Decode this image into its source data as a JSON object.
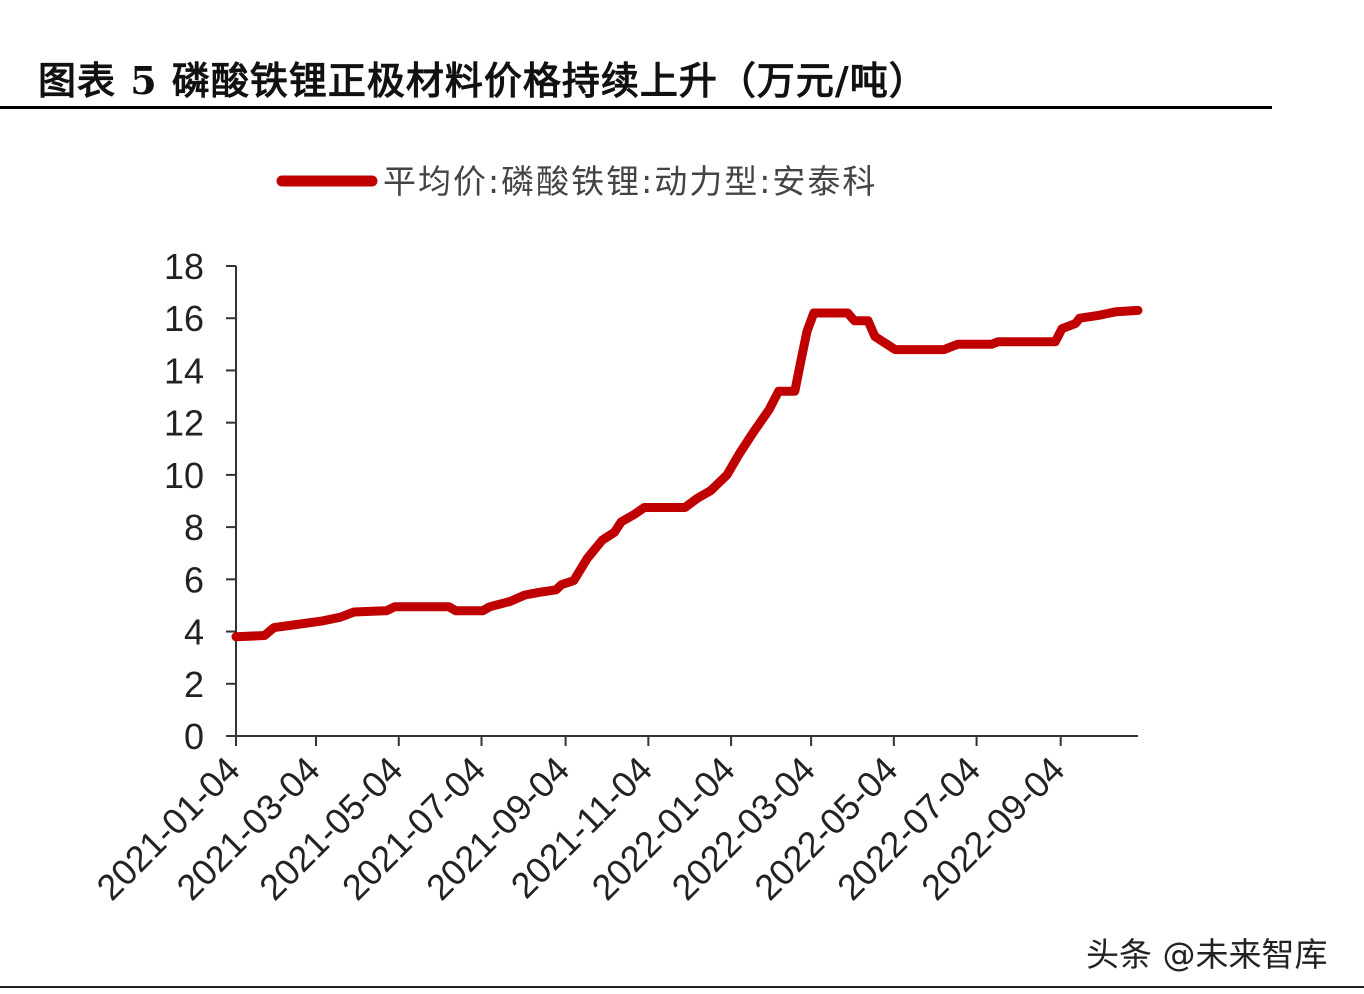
{
  "figure": {
    "title": "图表 5  磷酸铁锂正极材料价格持续上升（万元/吨）"
  },
  "watermark": "头条 @未来智库",
  "colors": {
    "series": "#c00000",
    "axis": "#333333",
    "text": "#222222"
  },
  "chart_data": {
    "type": "line",
    "title": "",
    "xlabel": "",
    "ylabel": "",
    "ylim": [
      0,
      18
    ],
    "yticks": [
      0,
      2,
      4,
      6,
      8,
      10,
      12,
      14,
      16,
      18
    ],
    "xlim": [
      "2021-01-04",
      "2022-10-31"
    ],
    "xticks": [
      "2021-01-04",
      "2021-03-04",
      "2021-05-04",
      "2021-07-04",
      "2021-09-04",
      "2021-11-04",
      "2022-01-04",
      "2022-03-04",
      "2022-05-04",
      "2022-07-04",
      "2022-09-04"
    ],
    "grid": false,
    "legend": "top",
    "series": [
      {
        "name": "平均价:磷酸铁锂:动力型:安泰科",
        "points": [
          [
            "2021-01-04",
            3.8
          ],
          [
            "2021-01-25",
            3.85
          ],
          [
            "2021-02-01",
            4.15
          ],
          [
            "2021-02-15",
            4.25
          ],
          [
            "2021-03-08",
            4.4
          ],
          [
            "2021-03-22",
            4.55
          ],
          [
            "2021-04-01",
            4.75
          ],
          [
            "2021-04-25",
            4.8
          ],
          [
            "2021-05-01",
            4.95
          ],
          [
            "2021-06-10",
            4.95
          ],
          [
            "2021-06-15",
            4.8
          ],
          [
            "2021-07-05",
            4.8
          ],
          [
            "2021-07-10",
            4.95
          ],
          [
            "2021-07-25",
            5.15
          ],
          [
            "2021-08-05",
            5.4
          ],
          [
            "2021-08-15",
            5.5
          ],
          [
            "2021-08-28",
            5.6
          ],
          [
            "2021-09-01",
            5.8
          ],
          [
            "2021-09-10",
            5.95
          ],
          [
            "2021-09-20",
            6.8
          ],
          [
            "2021-10-01",
            7.5
          ],
          [
            "2021-10-10",
            7.8
          ],
          [
            "2021-10-15",
            8.2
          ],
          [
            "2021-10-25",
            8.5
          ],
          [
            "2021-11-01",
            8.75
          ],
          [
            "2021-12-01",
            8.75
          ],
          [
            "2021-12-10",
            9.1
          ],
          [
            "2021-12-20",
            9.4
          ],
          [
            "2022-01-01",
            10.0
          ],
          [
            "2022-01-10",
            10.8
          ],
          [
            "2022-01-20",
            11.6
          ],
          [
            "2022-02-01",
            12.5
          ],
          [
            "2022-02-08",
            13.2
          ],
          [
            "2022-02-20",
            13.2
          ],
          [
            "2022-02-25",
            14.5
          ],
          [
            "2022-03-01",
            15.5
          ],
          [
            "2022-03-06",
            16.2
          ],
          [
            "2022-03-31",
            16.2
          ],
          [
            "2022-04-05",
            15.9
          ],
          [
            "2022-04-15",
            15.9
          ],
          [
            "2022-04-20",
            15.3
          ],
          [
            "2022-05-05",
            14.8
          ],
          [
            "2022-06-10",
            14.8
          ],
          [
            "2022-06-20",
            15.0
          ],
          [
            "2022-07-15",
            15.0
          ],
          [
            "2022-07-20",
            15.1
          ],
          [
            "2022-08-31",
            15.1
          ],
          [
            "2022-09-05",
            15.6
          ],
          [
            "2022-09-15",
            15.8
          ],
          [
            "2022-09-18",
            16.0
          ],
          [
            "2022-10-01",
            16.1
          ],
          [
            "2022-10-15",
            16.25
          ],
          [
            "2022-10-31",
            16.3
          ]
        ]
      }
    ]
  }
}
